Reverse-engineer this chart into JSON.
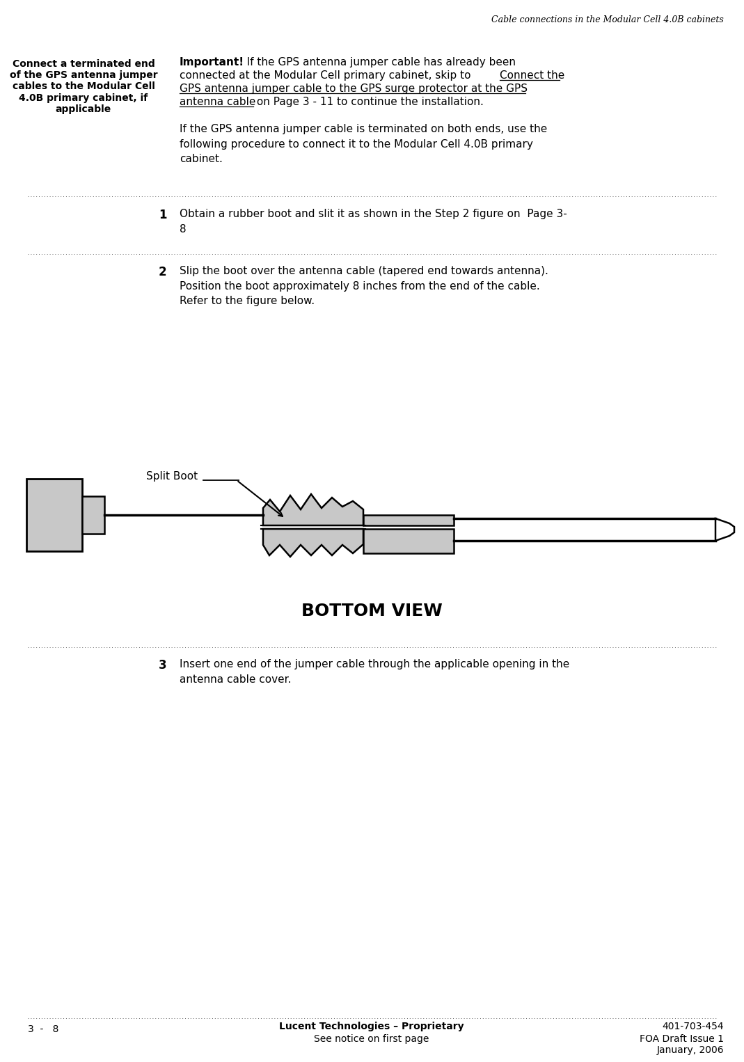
{
  "bg_color": "#ffffff",
  "header_italic_text": "Cable connections in the Modular Cell 4.0B cabinets",
  "left_sidebar_text": "Connect a terminated end\nof the GPS antenna jumper\ncables to the Modular Cell\n4.0B primary cabinet, if\napplicable",
  "important_bold": "Important!",
  "para_text": "If the GPS antenna jumper cable is terminated on both ends, use the\nfollowing procedure to connect it to the Modular Cell 4.0B primary\ncabinet.",
  "step1_num": "1",
  "step1_text": "Obtain a rubber boot and slit it as shown in the Step 2 figure on  Page 3-\n8",
  "step2_num": "2",
  "step2_text": "Slip the boot over the antenna cable (tapered end towards antenna).\nPosition the boot approximately 8 inches from the end of the cable.\nRefer to the figure below.",
  "step3_num": "3",
  "step3_text": "Insert one end of the jumper cable through the applicable opening in the\nantenna cable cover.",
  "split_boot_label": "Split Boot",
  "bottom_view_label": "BOTTOM VIEW",
  "footer_left": "3  -   8",
  "footer_center_line1": "Lucent Technologies – Proprietary",
  "footer_center_line2": "See notice on first page",
  "footer_right_line1": "401-703-454",
  "footer_right_line2": "FOA Draft Issue 1",
  "footer_right_line3": "January, 2006",
  "dot_line_color": "#666666",
  "text_color": "#000000",
  "gray_fill": "#c8c8c8",
  "dark_outline": "#000000",
  "imp_line1_pre": "   If the GPS antenna jumper cable has already been",
  "imp_line2_pre": "connected at the Modular Cell primary cabinet, skip to ",
  "imp_line2_ul": "Connect the",
  "imp_line3_ul": "GPS antenna jumper cable to the GPS surge protector at the GPS",
  "imp_line4_ul": "antenna cable",
  "imp_line4_post": " on Page 3 - 11 to continue the installation."
}
